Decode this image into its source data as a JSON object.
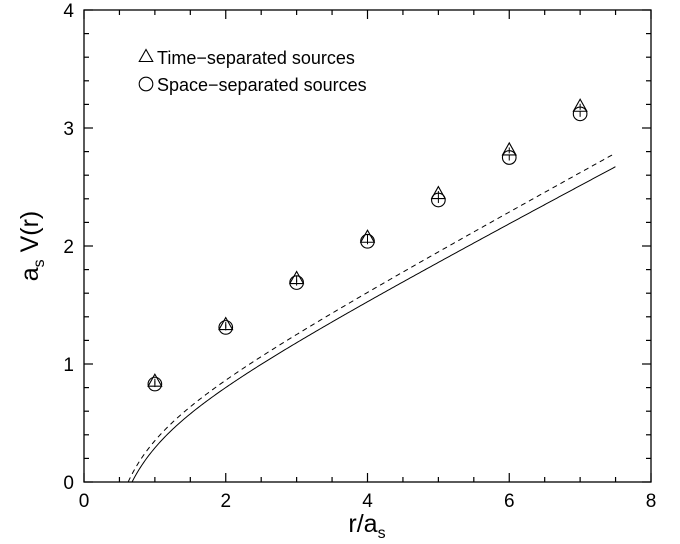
{
  "chart_data": {
    "type": "scatter",
    "xlim": [
      0,
      8
    ],
    "ylim": [
      0,
      4
    ],
    "x_ticks": [
      "0",
      "2",
      "4",
      "6",
      "8"
    ],
    "y_ticks": [
      "0",
      "1",
      "2",
      "3",
      "4"
    ],
    "xlabel": {
      "main": "r/a",
      "sub": "s"
    },
    "ylabel": {
      "pre": "a",
      "sub": "s",
      "post": " V(r)"
    },
    "grid": false,
    "legend_position": "top-left",
    "series": [
      {
        "name": "Time−separated sources",
        "marker": "triangle",
        "x": [
          1,
          2,
          3,
          4,
          5,
          6,
          7
        ],
        "y": [
          0.85,
          1.33,
          1.72,
          2.07,
          2.44,
          2.81,
          3.18
        ],
        "fit": {
          "style": "solid",
          "params": [
            0.37,
            0.314,
            0.395
          ]
        }
      },
      {
        "name": "Space−separated sources",
        "marker": "circle",
        "x": [
          1,
          2,
          3,
          4,
          5,
          6,
          7
        ],
        "y": [
          0.83,
          1.31,
          1.69,
          2.04,
          2.39,
          2.75,
          3.12
        ],
        "fit": {
          "style": "dashed",
          "params": [
            0.4,
            0.325,
            0.375
          ]
        }
      }
    ]
  }
}
